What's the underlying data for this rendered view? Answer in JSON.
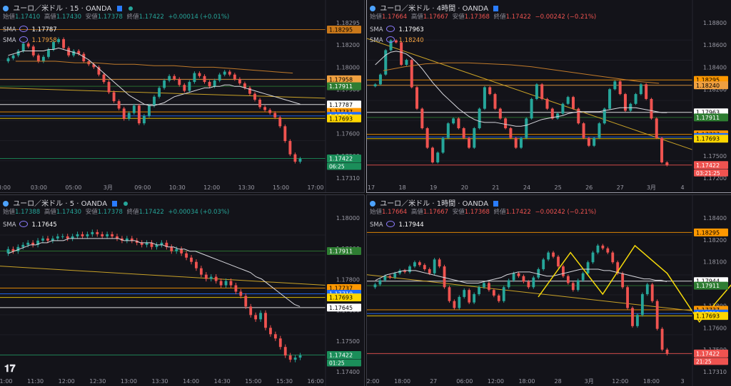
{
  "symbol": "ユーロ／米ドル",
  "broker": "OANDA",
  "labels": {
    "open": "始値",
    "high": "高値",
    "low": "安値",
    "close": "終値",
    "sma": "SMA"
  },
  "colors": {
    "up": "#26a69a",
    "down": "#ef5350",
    "sma": "#d8d8de",
    "sma_long": "#c07a2a",
    "trend": "#c9a227",
    "zigzag": "#f5d90a"
  },
  "panels": [
    {
      "id": "p15",
      "timeframe": "15",
      "ohlc": {
        "open": "1.17410",
        "high": "1.17430",
        "low": "1.17378",
        "close": "1.17422",
        "change": "+0.00014 (+0.01%)"
      },
      "sma_values": [
        "1.17787",
        "1.17958"
      ],
      "sma_value_colors": [
        "#ffffff",
        "#f0a040"
      ],
      "price_axis": {
        "ticks": [
          "1.18295",
          "1.18200",
          "1.18000",
          "1.17900",
          "1.17800",
          "1.17600",
          "1.17500",
          "1.17310"
        ]
      },
      "time_axis": [
        "3:00",
        "03:00",
        "05:00",
        "3月",
        "09:00",
        "10:30",
        "12:00",
        "13:30",
        "15:00",
        "17:00"
      ],
      "levels": [
        {
          "label": "1.18295",
          "price": 1.18295,
          "color": "#c9781a",
          "text": "#000000"
        },
        {
          "label": "1.17958",
          "price": 1.17958,
          "color": "#f0a040",
          "text": "#000000"
        },
        {
          "label": "1.17911",
          "price": 1.17911,
          "color": "#2e7d32",
          "text": "#ffffff"
        },
        {
          "label": "1.17787",
          "price": 1.17787,
          "color": "#ffffff",
          "text": "#000000"
        },
        {
          "label": "1.17737",
          "price": 1.17737,
          "color": "#ff9800",
          "text": "#000000"
        },
        {
          "label": "1.17710",
          "price": 1.1771,
          "color": "#1e6cff",
          "text": "#ffffff"
        },
        {
          "label": "1.17693",
          "price": 1.17693,
          "color": "#ffd600",
          "text": "#000000"
        },
        {
          "label": "1.17422",
          "price": 1.17422,
          "color": "#1b8e5a",
          "text": "#ffffff"
        }
      ],
      "countdown": "06:25"
    },
    {
      "id": "p4h",
      "timeframe": "4時間",
      "ohlc": {
        "open": "1.17664",
        "high": "1.17667",
        "low": "1.17368",
        "close": "1.17422",
        "change": "−0.00242 (−0.21%)"
      },
      "sma_values": [
        "1.17963",
        "1.18240"
      ],
      "sma_value_colors": [
        "#ffffff",
        "#f0a040"
      ],
      "price_axis": {
        "ticks": [
          "1.18800",
          "1.18600",
          "1.18400",
          "1.18200",
          "1.17800",
          "1.17600",
          "1.17500",
          "1.17200"
        ]
      },
      "time_axis": [
        "17",
        "18",
        "19",
        "20",
        "21",
        "24",
        "25",
        "26",
        "27",
        "3月",
        "4"
      ],
      "levels": [
        {
          "label": "1.18295",
          "price": 1.18295,
          "color": "#ff9800",
          "text": "#000000"
        },
        {
          "label": "1.18240",
          "price": 1.1824,
          "color": "#f0a040",
          "text": "#000000"
        },
        {
          "label": "1.17963",
          "price": 1.17963,
          "color": "#ffffff",
          "text": "#000000"
        },
        {
          "label": "1.17911",
          "price": 1.17911,
          "color": "#2e7d32",
          "text": "#ffffff"
        },
        {
          "label": "1.17737",
          "price": 1.17737,
          "color": "#ff9800",
          "text": "#000000"
        },
        {
          "label": "1.17710",
          "price": 1.1771,
          "color": "#1e6cff",
          "text": "#ffffff"
        },
        {
          "label": "1.17693",
          "price": 1.17693,
          "color": "#ffd600",
          "text": "#000000"
        },
        {
          "label": "1.17422",
          "price": 1.17422,
          "color": "#ef5350",
          "text": "#ffffff"
        }
      ],
      "countdown": "03:21:25"
    },
    {
      "id": "p5",
      "timeframe": "5",
      "ohlc": {
        "open": "1.17388",
        "high": "1.17430",
        "low": "1.17378",
        "close": "1.17422",
        "change": "+0.00034 (+0.03%)"
      },
      "sma_values": [
        "1.17645"
      ],
      "sma_value_colors": [
        "#ffffff"
      ],
      "price_axis": {
        "ticks": [
          "1.18000",
          "1.17900",
          "1.17800",
          "1.17600",
          "1.17500",
          "1.17400"
        ]
      },
      "time_axis": [
        "11:00",
        "11:30",
        "12:00",
        "12:30",
        "13:00",
        "13:30",
        "14:00",
        "14:30",
        "15:00",
        "15:30",
        "16:00"
      ],
      "levels": [
        {
          "label": "1.17911",
          "price": 1.17911,
          "color": "#2e7d32",
          "text": "#ffffff"
        },
        {
          "label": "1.17737",
          "price": 1.17737,
          "color": "#ff9800",
          "text": "#000000"
        },
        {
          "label": "1.17710",
          "price": 1.1771,
          "color": "#1e6cff",
          "text": "#ffffff"
        },
        {
          "label": "1.17693",
          "price": 1.17693,
          "color": "#ffd600",
          "text": "#000000"
        },
        {
          "label": "1.17645",
          "price": 1.17645,
          "color": "#ffffff",
          "text": "#000000"
        },
        {
          "label": "1.17422",
          "price": 1.17422,
          "color": "#1b8e5a",
          "text": "#ffffff"
        }
      ],
      "countdown": "01:25"
    },
    {
      "id": "p1h",
      "timeframe": "1時間",
      "ohlc": {
        "open": "1.17664",
        "high": "1.17667",
        "low": "1.17368",
        "close": "1.17422",
        "change": "−0.00242 (−0.21%)"
      },
      "sma_values": [
        "1.17944"
      ],
      "sma_value_colors": [
        "#ffffff"
      ],
      "price_axis": {
        "ticks": [
          "1.18400",
          "1.18200",
          "1.18100",
          "1.17900",
          "1.17800",
          "1.17600",
          "1.17500",
          "1.17310"
        ]
      },
      "time_axis": [
        "12:00",
        "18:00",
        "27",
        "06:00",
        "12:00",
        "18:00",
        "28",
        "3月",
        "12:00",
        "18:00",
        "3"
      ],
      "levels": [
        {
          "label": "1.18295",
          "price": 1.18295,
          "color": "#ff9800",
          "text": "#000000"
        },
        {
          "label": "1.17944",
          "price": 1.17944,
          "color": "#ffffff",
          "text": "#000000"
        },
        {
          "label": "1.17911",
          "price": 1.17911,
          "color": "#2e7d32",
          "text": "#ffffff"
        },
        {
          "label": "1.17737",
          "price": 1.17737,
          "color": "#ff9800",
          "text": "#000000"
        },
        {
          "label": "1.17710",
          "price": 1.1771,
          "color": "#1e6cff",
          "text": "#ffffff"
        },
        {
          "label": "1.17693",
          "price": 1.17693,
          "color": "#ffd600",
          "text": "#000000"
        },
        {
          "label": "1.17422",
          "price": 1.17422,
          "color": "#ef5350",
          "text": "#ffffff"
        }
      ],
      "countdown": "21:25"
    }
  ],
  "chart_data": [
    {
      "type": "candlestick",
      "panel": "p15",
      "ylim": [
        1.1727,
        1.1836
      ],
      "close": [
        1.181,
        1.1812,
        1.1815,
        1.182,
        1.1818,
        1.1812,
        1.1808,
        1.1811,
        1.1816,
        1.1821,
        1.1823,
        1.1817,
        1.1812,
        1.1815,
        1.1813,
        1.1808,
        1.1806,
        1.1804,
        1.1799,
        1.1794,
        1.1787,
        1.1781,
        1.1776,
        1.1769,
        1.1773,
        1.1778,
        1.1766,
        1.1771,
        1.1778,
        1.1784,
        1.179,
        1.1795,
        1.1798,
        1.1796,
        1.1792,
        1.1788,
        1.1794,
        1.18,
        1.1798,
        1.1794,
        1.1791,
        1.1795,
        1.1799,
        1.1801,
        1.1799,
        1.1796,
        1.1793,
        1.179,
        1.1786,
        1.1782,
        1.1777,
        1.1775,
        1.1773,
        1.177,
        1.1764,
        1.1754,
        1.1745,
        1.174,
        1.1742
      ],
      "sma": [
        1.1812,
        1.1813,
        1.1814,
        1.1815,
        1.1815,
        1.1815,
        1.1815,
        1.1815,
        1.1816,
        1.1816,
        1.1817,
        1.1816,
        1.1815,
        1.1814,
        1.1813,
        1.1811,
        1.1809,
        1.1806,
        1.1803,
        1.18,
        1.1797,
        1.1794,
        1.1791,
        1.1788,
        1.1785,
        1.1783,
        1.1781,
        1.1779,
        1.1778,
        1.1778,
        1.1779,
        1.178,
        1.1782,
        1.1784,
        1.1785,
        1.1786,
        1.1787,
        1.1788,
        1.1789,
        1.179,
        1.179,
        1.1791,
        1.1791,
        1.1792,
        1.1792,
        1.1791,
        1.1791,
        1.179,
        1.1789,
        1.1788,
        1.1787,
        1.1786,
        1.1785,
        1.1784,
        1.1783,
        1.1782,
        1.1781,
        1.178,
        1.1779
      ],
      "sma_long": [
        1.1808,
        1.1808,
        1.1808,
        1.1807,
        1.1807,
        1.1806,
        1.1806,
        1.1805,
        1.1805,
        1.1804,
        1.1804,
        1.1803,
        1.1802,
        1.1801,
        1.18
      ],
      "trend": [
        [
          1.179,
          1.1783
        ]
      ]
    },
    {
      "type": "candlestick",
      "panel": "p4h",
      "ylim": [
        1.1726,
        1.1891
      ],
      "close": [
        1.1825,
        1.1835,
        1.186,
        1.187,
        1.1868,
        1.1845,
        1.185,
        1.1822,
        1.18,
        1.178,
        1.176,
        1.1745,
        1.1755,
        1.177,
        1.1785,
        1.179,
        1.178,
        1.177,
        1.176,
        1.178,
        1.18,
        1.1822,
        1.1815,
        1.18,
        1.179,
        1.178,
        1.177,
        1.176,
        1.177,
        1.179,
        1.181,
        1.1825,
        1.181,
        1.18,
        1.179,
        1.1795,
        1.1805,
        1.1812,
        1.18,
        1.1785,
        1.177,
        1.1762,
        1.177,
        1.1785,
        1.18,
        1.182,
        1.1828,
        1.1815,
        1.1798,
        1.1805,
        1.1815,
        1.1825,
        1.181,
        1.179,
        1.177,
        1.1745,
        1.1742
      ],
      "sma": [
        1.1845,
        1.185,
        1.1855,
        1.1858,
        1.1859,
        1.1858,
        1.1856,
        1.1852,
        1.1847,
        1.1841,
        1.1834,
        1.1827,
        1.1821,
        1.1815,
        1.181,
        1.1805,
        1.18,
        1.1796,
        1.1792,
        1.1789,
        1.1787,
        1.1786,
        1.1786,
        1.1786,
        1.1785,
        1.1784,
        1.1783,
        1.1782,
        1.1782,
        1.1783,
        1.1785,
        1.1787,
        1.1789,
        1.179,
        1.1791,
        1.1792,
        1.1793,
        1.1795,
        1.1796,
        1.1797,
        1.1797,
        1.1797,
        1.1797,
        1.1797,
        1.1798,
        1.1799,
        1.18,
        1.1801,
        1.1801,
        1.1801,
        1.1801,
        1.18,
        1.1799,
        1.1798,
        1.1797,
        1.1796,
        1.1796
      ],
      "sma_long": [
        1.1839,
        1.1843,
        1.1846,
        1.1847,
        1.1847,
        1.1846,
        1.1845,
        1.1843,
        1.184,
        1.1837,
        1.1834,
        1.1831,
        1.1828,
        1.1826
      ],
      "trend": [
        [
          1.1872,
          1.1758
        ]
      ]
    },
    {
      "type": "candlestick",
      "panel": "p5",
      "ylim": [
        1.1733,
        1.1808
      ],
      "close": [
        1.1792,
        1.1791,
        1.1793,
        1.1794,
        1.1795,
        1.1794,
        1.1796,
        1.1797,
        1.1796,
        1.1797,
        1.1798,
        1.1798,
        1.1797,
        1.1798,
        1.1799,
        1.1798,
        1.1799,
        1.18,
        1.1799,
        1.1798,
        1.1799,
        1.1798,
        1.1797,
        1.1796,
        1.1797,
        1.1796,
        1.1795,
        1.1794,
        1.1795,
        1.1793,
        1.1794,
        1.1795,
        1.1793,
        1.1791,
        1.1792,
        1.179,
        1.1788,
        1.1786,
        1.1783,
        1.178,
        1.1778,
        1.1779,
        1.1777,
        1.1775,
        1.1777,
        1.1775,
        1.1772,
        1.177,
        1.1765,
        1.1761,
        1.1759,
        1.1762,
        1.1755,
        1.1752,
        1.175,
        1.1746,
        1.1742,
        1.174,
        1.1741,
        1.1742
      ],
      "sma": [
        1.179,
        1.1791,
        1.1792,
        1.1793,
        1.1794,
        1.1794,
        1.1795,
        1.1795,
        1.1796,
        1.1796,
        1.1796,
        1.1797,
        1.1797,
        1.1797,
        1.1797,
        1.1797,
        1.1797,
        1.1797,
        1.1797,
        1.1797,
        1.1797,
        1.1796,
        1.1796,
        1.1796,
        1.1795,
        1.1795,
        1.1795,
        1.1794,
        1.1794,
        1.1793,
        1.1793,
        1.1792,
        1.1792,
        1.1791,
        1.1791,
        1.179,
        1.1789,
        1.1788,
        1.1787,
        1.1786,
        1.1785,
        1.1784,
        1.1783,
        1.1782,
        1.1781,
        1.1779,
        1.1778,
        1.1776,
        1.1774,
        1.1772,
        1.177,
        1.1768,
        1.1766,
        1.1765
      ],
      "trend": [
        [
          1.1784,
          1.1775
        ]
      ]
    },
    {
      "type": "candlestick",
      "panel": "p1h",
      "ylim": [
        1.1727,
        1.1842
      ],
      "close": [
        1.1792,
        1.1795,
        1.1798,
        1.1797,
        1.18,
        1.1802,
        1.1801,
        1.1805,
        1.1808,
        1.1806,
        1.1803,
        1.18,
        1.181,
        1.1805,
        1.179,
        1.178,
        1.1775,
        1.1783,
        1.1788,
        1.1779,
        1.1785,
        1.179,
        1.1793,
        1.1788,
        1.1784,
        1.178,
        1.179,
        1.1795,
        1.18,
        1.1798,
        1.1794,
        1.179,
        1.1797,
        1.1803,
        1.181,
        1.1815,
        1.1812,
        1.1805,
        1.1798,
        1.1793,
        1.1788,
        1.1795,
        1.18,
        1.1808,
        1.1815,
        1.182,
        1.1818,
        1.1815,
        1.1808,
        1.18,
        1.179,
        1.1775,
        1.1762,
        1.177,
        1.1785,
        1.1792,
        1.178,
        1.176,
        1.1745,
        1.1742
      ],
      "sma": [
        1.1795,
        1.1797,
        1.1799,
        1.18,
        1.1801,
        1.1802,
        1.1802,
        1.1802,
        1.1801,
        1.18,
        1.1799,
        1.1798,
        1.1797,
        1.1796,
        1.1795,
        1.1794,
        1.1793,
        1.1793,
        1.1793,
        1.1794,
        1.1795,
        1.1796,
        1.1797,
        1.1799,
        1.18,
        1.1801,
        1.1801,
        1.1801,
        1.18,
        1.1799,
        1.1798,
        1.1798,
        1.1799,
        1.18,
        1.1801,
        1.1802,
        1.1803,
        1.1803,
        1.1803,
        1.1803,
        1.1802,
        1.1802,
        1.1801,
        1.18,
        1.1799,
        1.1798,
        1.1797,
        1.1796,
        1.1796,
        1.1795,
        1.1795,
        1.1794
      ],
      "trend": [
        [
          1.1799,
          1.1773
        ]
      ],
      "zigzag": [
        1.1783,
        1.1815,
        1.1785,
        1.182,
        1.18,
        1.1765,
        1.1792,
        1.1748
      ]
    }
  ]
}
